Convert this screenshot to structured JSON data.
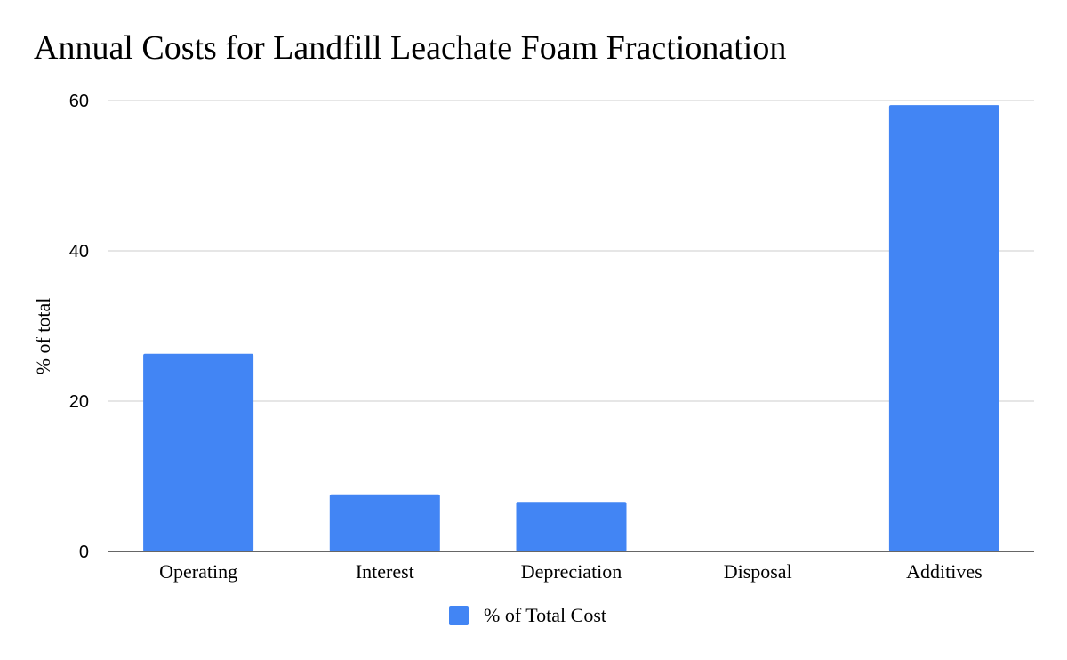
{
  "chart_data": {
    "type": "bar",
    "title": "Annual Costs for Landfill Leachate Foam Fractionation",
    "xlabel": "",
    "ylabel": "% of total",
    "categories": [
      "Operating",
      "Interest",
      "Depreciation",
      "Disposal",
      "Additives"
    ],
    "series": [
      {
        "name": "% of Total Cost",
        "color": "#4285f4",
        "values": [
          26.3,
          7.6,
          6.6,
          0,
          59.4
        ]
      }
    ],
    "ylim": [
      0,
      60
    ],
    "yticks": [
      0,
      20,
      40,
      60
    ],
    "grid": true,
    "legend": "bottom"
  }
}
